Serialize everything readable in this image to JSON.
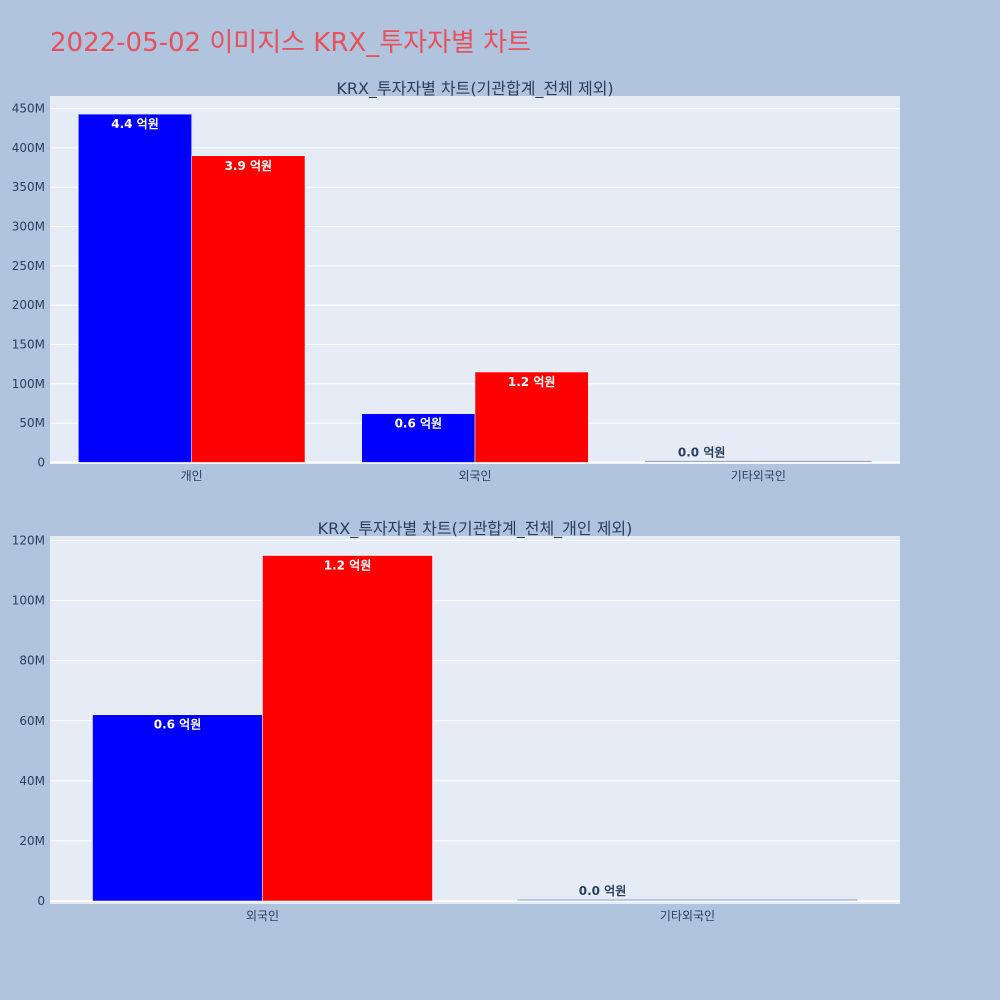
{
  "page": {
    "title": "2022-05-02 이미지스 KRX_투자자별 차트",
    "background": "#b0c4de",
    "title_color": "#e8505b"
  },
  "colors": {
    "plot_bg": "#e5ecf6",
    "grid": "#ffffff",
    "series_1": "#0000ff",
    "series_2": "#ff0000",
    "text": "#2a3f5f"
  },
  "chart_data": [
    {
      "type": "bar",
      "title": "KRX_투자자별 차트(기관합계_전체 제외)",
      "categories": [
        "개인",
        "외국인",
        "기타외국인"
      ],
      "series": [
        {
          "color": "#0000ff",
          "values": [
            443000000,
            62000000,
            0
          ],
          "labels": [
            "4.4 억원",
            "0.6 억원",
            "0.0 억원"
          ]
        },
        {
          "color": "#ff0000",
          "values": [
            390000000,
            115000000,
            0
          ],
          "labels": [
            "3.9 억원",
            "1.2 억원",
            ""
          ]
        }
      ],
      "yticks": [
        0,
        50000000,
        100000000,
        150000000,
        200000000,
        250000000,
        300000000,
        350000000,
        400000000,
        450000000
      ],
      "ytick_labels": [
        "0",
        "50M",
        "100M",
        "150M",
        "200M",
        "250M",
        "300M",
        "350M",
        "400M",
        "450M"
      ],
      "ylim": [
        -2000000,
        466000000
      ],
      "grid": true
    },
    {
      "type": "bar",
      "title": "KRX_투자자별 차트(기관합계_전체_개인 제외)",
      "categories": [
        "외국인",
        "기타외국인"
      ],
      "series": [
        {
          "color": "#0000ff",
          "values": [
            62000000,
            0
          ],
          "labels": [
            "0.6 억원",
            "0.0 억원"
          ]
        },
        {
          "color": "#ff0000",
          "values": [
            115000000,
            0
          ],
          "labels": [
            "1.2 억원",
            ""
          ]
        }
      ],
      "yticks": [
        0,
        20000000,
        40000000,
        60000000,
        80000000,
        100000000,
        120000000
      ],
      "ytick_labels": [
        "0",
        "20M",
        "40M",
        "60M",
        "80M",
        "100M",
        "120M"
      ],
      "ylim": [
        -1000000,
        121500000
      ],
      "grid": true
    }
  ]
}
